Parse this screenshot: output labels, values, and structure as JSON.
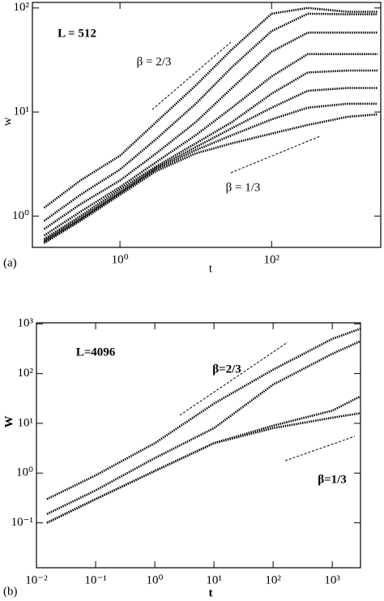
{
  "chart_data": [
    {
      "type": "line",
      "panel_label": "(a)",
      "x_label": "t",
      "y_label": "w",
      "log_x": true,
      "log_y": true,
      "xlim": [
        0.07,
        2750
      ],
      "ylim": [
        0.5,
        113
      ],
      "xticks": [
        {
          "value": 1,
          "label": "10⁰"
        },
        {
          "value": 100,
          "label": "10²"
        }
      ],
      "yticks": [
        {
          "value": 1,
          "label": "10⁰"
        },
        {
          "value": 10,
          "label": "10¹"
        },
        {
          "value": 100,
          "label": "10²"
        }
      ],
      "annotations": [
        "L = 512",
        "β = 2/3",
        "β = 1/3"
      ],
      "x": [
        0.1,
        0.3,
        1,
        3,
        10,
        30,
        100,
        300,
        1000,
        2500
      ],
      "series": [
        {
          "color": "#000000",
          "values": [
            1.2,
            2.2,
            3.8,
            8,
            18,
            40,
            88,
            100,
            92,
            92
          ]
        },
        {
          "color": "#000000",
          "values": [
            0.9,
            1.6,
            2.8,
            5.5,
            12,
            27,
            60,
            88,
            87,
            87
          ]
        },
        {
          "color": "#000000",
          "values": [
            0.75,
            1.3,
            2.2,
            4,
            8,
            17,
            38,
            58,
            58,
            58
          ]
        },
        {
          "color": "#000000",
          "values": [
            0.65,
            1.1,
            1.9,
            3.3,
            6,
            11,
            22,
            36,
            36,
            36
          ]
        },
        {
          "color": "#000000",
          "values": [
            0.6,
            1.0,
            1.8,
            3,
            5,
            8,
            15,
            24,
            25,
            25
          ]
        },
        {
          "color": "#000000",
          "values": [
            0.58,
            0.95,
            1.7,
            2.9,
            4.6,
            7,
            11,
            16,
            17,
            17
          ]
        },
        {
          "color": "#000000",
          "values": [
            0.56,
            0.92,
            1.65,
            2.8,
            4.3,
            6,
            8.5,
            11,
            12,
            12
          ]
        },
        {
          "color": "#000000",
          "values": [
            0.55,
            0.9,
            1.6,
            2.7,
            4,
            5,
            6.2,
            7.5,
            9,
            9.5
          ]
        }
      ]
    },
    {
      "type": "line",
      "panel_label": "(b)",
      "x_label": "t",
      "y_label": "W",
      "log_x": true,
      "log_y": true,
      "xlim": [
        0.01,
        3000
      ],
      "ylim": [
        0.0125,
        1050
      ],
      "xticks": [
        {
          "value": 0.01,
          "label": "10⁻²"
        },
        {
          "value": 0.1,
          "label": "10⁻¹"
        },
        {
          "value": 1,
          "label": "10⁰"
        },
        {
          "value": 10,
          "label": "10¹"
        },
        {
          "value": 100,
          "label": "10²"
        },
        {
          "value": 1000,
          "label": "10³"
        }
      ],
      "yticks": [
        {
          "value": 0.1,
          "label": "10⁻¹"
        },
        {
          "value": 1,
          "label": "10⁰"
        },
        {
          "value": 10,
          "label": "10¹"
        },
        {
          "value": 100,
          "label": "10²"
        },
        {
          "value": 1000,
          "label": "10³"
        }
      ],
      "annotations": [
        "L=4096",
        "β=2/3",
        "β=1/3"
      ],
      "x": [
        0.015,
        0.1,
        1,
        10,
        100,
        1000,
        3000
      ],
      "series": [
        {
          "color": "#000000",
          "values": [
            0.3,
            0.9,
            4,
            25,
            120,
            500,
            800
          ]
        },
        {
          "color": "#000000",
          "values": [
            0.15,
            0.45,
            2,
            8,
            60,
            250,
            450
          ]
        },
        {
          "color": "#000000",
          "values": [
            0.1,
            0.3,
            1.1,
            4,
            9,
            18,
            35
          ]
        },
        {
          "color": "#000000",
          "values": [
            0.1,
            0.3,
            1.1,
            4,
            8,
            13,
            16
          ]
        }
      ]
    }
  ]
}
